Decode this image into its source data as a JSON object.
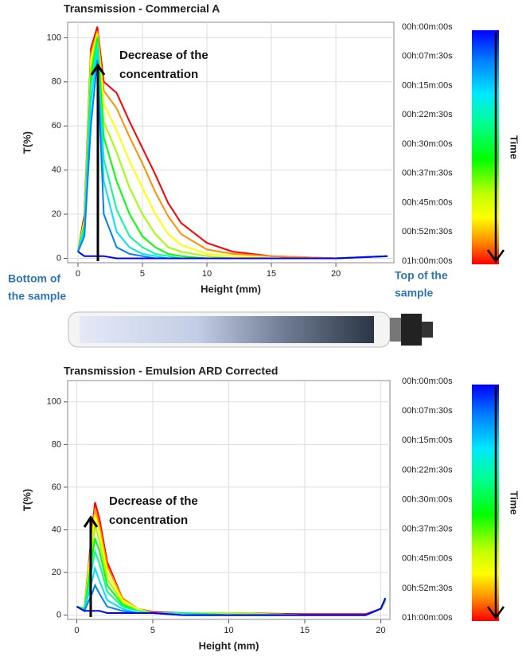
{
  "chart_data": [
    {
      "type": "line",
      "title": "Transmission - Commercial A",
      "x_label": "Height (mm)",
      "y_label": "T(%)",
      "xlim": [
        -0.8,
        24.5
      ],
      "ylim": [
        -2,
        107
      ],
      "xticks": [
        0,
        5,
        10,
        15,
        20
      ],
      "yticks": [
        0,
        20,
        40,
        60,
        80,
        100
      ],
      "grid": true,
      "colorbar_label": "Time",
      "annotation": [
        "Decrease of the",
        "concentration"
      ],
      "bottom_label": [
        "Bottom of",
        "the sample"
      ],
      "top_label": [
        "Top of the",
        "sample"
      ],
      "x": [
        0,
        0.5,
        1,
        1.5,
        2,
        3,
        4,
        5,
        6,
        7,
        8,
        10,
        12,
        15,
        20,
        24
      ],
      "series": [
        {
          "name": "00h:00m:00s",
          "color": "#0000ff",
          "values": [
            3,
            1,
            1,
            1,
            1,
            0,
            0,
            0,
            0,
            0,
            0,
            0,
            0,
            0,
            0,
            1
          ]
        },
        {
          "name": "00h:07m:30s",
          "color": "#0080ff",
          "values": [
            3,
            10,
            60,
            90,
            20,
            5,
            2,
            1,
            0,
            0,
            0,
            0,
            0,
            0,
            0,
            1
          ]
        },
        {
          "name": "00h:15m:00s",
          "color": "#00e0ff",
          "values": [
            3,
            12,
            70,
            95,
            35,
            12,
            5,
            2,
            1,
            0,
            0,
            0,
            0,
            0,
            0,
            1
          ]
        },
        {
          "name": "00h:22m:30s",
          "color": "#00ff90",
          "values": [
            3,
            14,
            78,
            98,
            45,
            22,
            10,
            5,
            2,
            1,
            0,
            0,
            0,
            0,
            0,
            1
          ]
        },
        {
          "name": "00h:30m:00s",
          "color": "#00ff00",
          "values": [
            3,
            15,
            82,
            100,
            55,
            35,
            20,
            10,
            5,
            2,
            1,
            0,
            0,
            0,
            0,
            1
          ]
        },
        {
          "name": "00h:37m:30s",
          "color": "#a0ff00",
          "values": [
            3,
            16,
            86,
            101,
            62,
            48,
            32,
            20,
            11,
            5,
            3,
            1,
            0,
            0,
            0,
            1
          ]
        },
        {
          "name": "00h:45m:00s",
          "color": "#ffff00",
          "values": [
            3,
            17,
            90,
            102,
            70,
            58,
            44,
            32,
            20,
            11,
            6,
            2,
            1,
            0,
            0,
            1
          ]
        },
        {
          "name": "00h:52m:30s",
          "color": "#ff9000",
          "values": [
            3,
            18,
            93,
            103,
            76,
            68,
            55,
            43,
            30,
            19,
            11,
            4,
            2,
            1,
            0,
            1
          ]
        },
        {
          "name": "01h:00m:00s",
          "color": "#ff0000",
          "values": [
            3,
            20,
            95,
            105,
            80,
            75,
            62,
            50,
            38,
            25,
            16,
            7,
            3,
            1,
            0,
            1
          ]
        }
      ]
    },
    {
      "type": "line",
      "title": "Transmission - Emulsion ARD Corrected",
      "x_label": "Height (mm)",
      "y_label": "T(%)",
      "xlim": [
        -0.6,
        20.6
      ],
      "ylim": [
        -2,
        110
      ],
      "xticks": [
        0,
        5,
        10,
        15,
        20
      ],
      "yticks": [
        0,
        20,
        40,
        60,
        80,
        100
      ],
      "grid": true,
      "colorbar_label": "Time",
      "annotation": [
        "Decrease of the",
        "concentration"
      ],
      "x": [
        0,
        0.5,
        1,
        1.2,
        1.5,
        2,
        3,
        4,
        5,
        7,
        10,
        15,
        19,
        20,
        20.3
      ],
      "series": [
        {
          "name": "00h:00m:00s",
          "color": "#0000ff",
          "values": [
            4,
            2,
            2,
            2,
            2,
            1,
            1,
            1,
            1,
            0,
            0,
            0,
            0,
            3,
            8
          ]
        },
        {
          "name": "00h:07m:30s",
          "color": "#0080ff",
          "values": [
            4,
            2,
            10,
            14,
            10,
            4,
            2,
            1,
            1,
            0,
            0,
            0,
            0,
            3,
            8
          ]
        },
        {
          "name": "00h:15m:00s",
          "color": "#00e0ff",
          "values": [
            4,
            2,
            16,
            22,
            16,
            7,
            3,
            1,
            1,
            0,
            0,
            0,
            0,
            3,
            8
          ]
        },
        {
          "name": "00h:22m:30s",
          "color": "#00ff90",
          "values": [
            4,
            2,
            22,
            30,
            24,
            11,
            4,
            2,
            1,
            1,
            0,
            0,
            0,
            3,
            7
          ]
        },
        {
          "name": "00h:30m:00s",
          "color": "#00ff00",
          "values": [
            4,
            3,
            27,
            36,
            30,
            14,
            5,
            2,
            1,
            1,
            0,
            0,
            0,
            3,
            7
          ]
        },
        {
          "name": "00h:37m:30s",
          "color": "#a0ff00",
          "values": [
            4,
            3,
            31,
            42,
            35,
            17,
            6,
            2,
            1,
            1,
            1,
            0,
            0,
            3,
            7
          ]
        },
        {
          "name": "00h:45m:00s",
          "color": "#ffff00",
          "values": [
            4,
            3,
            35,
            47,
            39,
            20,
            7,
            3,
            1,
            1,
            1,
            0,
            0,
            3,
            6
          ]
        },
        {
          "name": "00h:52m:30s",
          "color": "#ff9000",
          "values": [
            4,
            3,
            38,
            50,
            42,
            23,
            8,
            3,
            1,
            1,
            1,
            0,
            0,
            3,
            6
          ]
        },
        {
          "name": "01h:00m:00s",
          "color": "#ff0000",
          "values": [
            4,
            3,
            40,
            53,
            45,
            25,
            8,
            3,
            1.5,
            1,
            1,
            0.5,
            0.5,
            3,
            6
          ]
        }
      ]
    }
  ]
}
